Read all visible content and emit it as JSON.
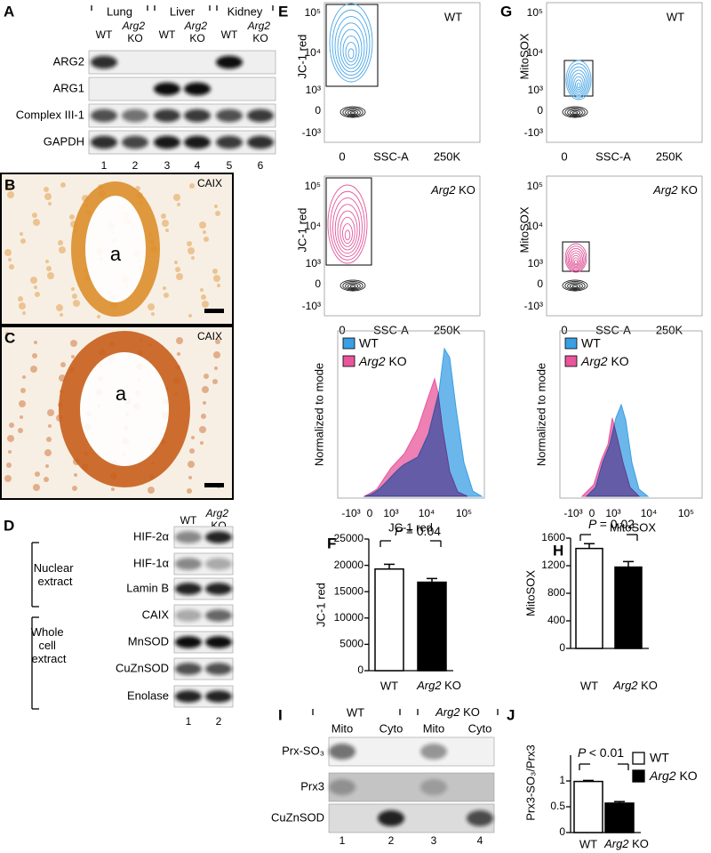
{
  "panel_a": {
    "letter": "A",
    "groups": [
      "Lung",
      "Liver",
      "Kidney"
    ],
    "lanes": [
      "WT",
      "Arg2 KO",
      "WT",
      "Arg2 KO",
      "WT",
      "Arg2 KO"
    ],
    "rows": [
      "ARG2",
      "ARG1",
      "Complex III-1",
      "GAPDH"
    ],
    "lane_numbers": [
      1,
      2,
      3,
      4,
      5,
      6
    ]
  },
  "panel_b": {
    "letter": "B",
    "stain": "CAIX",
    "lumen": "a"
  },
  "panel_c": {
    "letter": "C",
    "stain": "CAIX",
    "lumen": "a"
  },
  "panel_d": {
    "letter": "D",
    "lanes": [
      "WT",
      "Arg2 KO"
    ],
    "groups": [
      "Nuclear extract",
      "Whole cell extract"
    ],
    "rows": [
      "HIF-2α",
      "HIF-1α",
      "Lamin B",
      "CAIX",
      "MnSOD",
      "CuZnSOD",
      "Enolase"
    ],
    "lane_numbers": [
      1,
      2
    ]
  },
  "panel_e": {
    "letter": "E",
    "plots": [
      {
        "label": "WT",
        "y_label": "JC-1 red",
        "y_ticks": [
          "10⁵",
          "10⁴",
          "10³",
          "0",
          "-10³"
        ],
        "x_ticks": [
          "0",
          "250K"
        ],
        "x_label": "SSC-A"
      },
      {
        "label": "Arg2 KO",
        "y_label": "JC-1 red",
        "y_ticks": [
          "10⁵",
          "10⁴",
          "10³",
          "0",
          "-10³"
        ],
        "x_ticks": [
          "0",
          "250K"
        ],
        "x_label": "SSC-A"
      }
    ],
    "histogram": {
      "y_label": "Normalized to mode",
      "x_label": "JC-1 red",
      "x_ticks": [
        "-10³",
        "0",
        "10³",
        "10⁴",
        "10⁵"
      ],
      "legend": [
        "WT",
        "Arg2 KO"
      ],
      "colors": [
        "#3a9fe4",
        "#e8559b"
      ]
    }
  },
  "panel_g": {
    "letter": "G",
    "plots": [
      {
        "label": "WT",
        "y_label": "MitoSOX",
        "y_ticks": [
          "10⁵",
          "10⁴",
          "10³",
          "0",
          "-10³"
        ],
        "x_ticks": [
          "0",
          "250K"
        ],
        "x_label": "SSC-A"
      },
      {
        "label": "Arg2 KO",
        "y_label": "MitoSOX",
        "y_ticks": [
          "10⁵",
          "10⁴",
          "10³",
          "0",
          "-10³"
        ],
        "x_ticks": [
          "0",
          "250K"
        ],
        "x_label": "SSC-A"
      }
    ],
    "histogram": {
      "y_label": "Normalized to mode",
      "x_label": "MitoSOX",
      "x_ticks": [
        "-10³",
        "0",
        "10³",
        "10⁴",
        "10⁵"
      ],
      "legend": [
        "WT",
        "Arg2 KO"
      ],
      "colors": [
        "#3a9fe4",
        "#e8559b"
      ]
    }
  },
  "panel_i": {
    "letter": "I",
    "groups": [
      "WT",
      "Arg2 KO"
    ],
    "lanes": [
      "Mito",
      "Cyto",
      "Mito",
      "Cyto"
    ],
    "rows": [
      "Prx-SO₃",
      "Prx3",
      "CuZnSOD"
    ],
    "lane_numbers": [
      1,
      2,
      3,
      4
    ]
  },
  "chart_data": [
    {
      "type": "bar",
      "letter": "F",
      "y_label": "JC-1 red",
      "categories": [
        "WT",
        "Arg2 KO"
      ],
      "values": [
        19300,
        16800
      ],
      "errors": [
        900,
        700
      ],
      "colors": [
        "#ffffff",
        "#000000"
      ],
      "ylim": [
        0,
        25000
      ],
      "yticks": [
        0,
        5000,
        10000,
        15000,
        20000,
        25000
      ],
      "annotation": "P = 0.04"
    },
    {
      "type": "bar",
      "letter": "H",
      "y_label": "MitoSOX",
      "categories": [
        "WT",
        "Arg2 KO"
      ],
      "values": [
        1450,
        1180
      ],
      "errors": [
        70,
        80
      ],
      "colors": [
        "#ffffff",
        "#000000"
      ],
      "ylim": [
        0,
        1600
      ],
      "yticks": [
        0,
        400,
        800,
        1200,
        1600
      ],
      "annotation": "P = 0.02"
    },
    {
      "type": "bar",
      "letter": "J",
      "y_label": "Prx3-SO₃/Prx3",
      "categories": [
        "WT",
        "Arg2 KO"
      ],
      "values": [
        0.99,
        0.57
      ],
      "errors": [
        0.02,
        0.03
      ],
      "colors": [
        "#ffffff",
        "#000000"
      ],
      "ylim": [
        0,
        1.5
      ],
      "yticks": [
        0,
        0.5,
        1
      ],
      "annotation": "P < 0.01",
      "legend": "top-right"
    }
  ]
}
